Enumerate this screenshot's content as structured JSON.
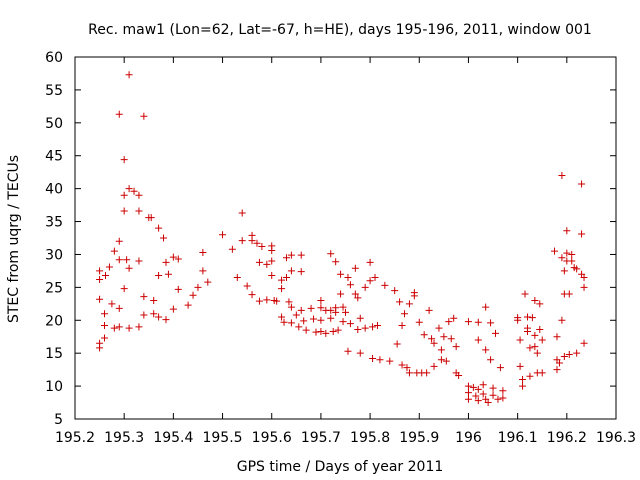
{
  "chart_data": {
    "type": "scatter",
    "title": "Rec. maw1 (Lon=62, Lat=-67, h=HE), days 195-196, 2011, window 001",
    "xlabel": "GPS time / Days of year 2011",
    "ylabel": "STEC from uqrg / TECUs",
    "xlim": [
      195.2,
      196.3
    ],
    "ylim": [
      5,
      60
    ],
    "xticks": [
      195.2,
      195.3,
      195.4,
      195.5,
      195.6,
      195.7,
      195.8,
      195.9,
      196.0,
      196.1,
      196.2,
      196.3
    ],
    "xtick_labels": [
      "195.2",
      "195.3",
      "195.4",
      "195.5",
      "195.6",
      "195.7",
      "195.8",
      "195.9",
      "196",
      "196.1",
      "196.2",
      "196.3"
    ],
    "yticks": [
      5,
      10,
      15,
      20,
      25,
      30,
      35,
      40,
      45,
      50,
      55,
      60
    ],
    "ytick_labels": [
      "5",
      "10",
      "15",
      "20",
      "25",
      "30",
      "35",
      "40",
      "45",
      "50",
      "55",
      "60"
    ],
    "marker": "plus",
    "marker_color": "#cc0000",
    "grid": false,
    "series": [
      {
        "name": "STEC",
        "points": [
          [
            195.25,
            27.5
          ],
          [
            195.25,
            26.2
          ],
          [
            195.25,
            23.2
          ],
          [
            195.25,
            16.5
          ],
          [
            195.25,
            15.8
          ],
          [
            195.26,
            21.0
          ],
          [
            195.26,
            19.2
          ],
          [
            195.26,
            17.3
          ],
          [
            195.262,
            26.8
          ],
          [
            195.27,
            28.1
          ],
          [
            195.275,
            22.5
          ],
          [
            195.28,
            18.8
          ],
          [
            195.28,
            30.5
          ],
          [
            195.29,
            51.3
          ],
          [
            195.29,
            32.0
          ],
          [
            195.29,
            29.2
          ],
          [
            195.29,
            21.8
          ],
          [
            195.29,
            19.0
          ],
          [
            195.3,
            44.4
          ],
          [
            195.3,
            39.0
          ],
          [
            195.3,
            36.6
          ],
          [
            195.3,
            24.8
          ],
          [
            195.305,
            29.2
          ],
          [
            195.31,
            57.3
          ],
          [
            195.31,
            40.0
          ],
          [
            195.31,
            27.9
          ],
          [
            195.31,
            18.8
          ],
          [
            195.32,
            39.6
          ],
          [
            195.33,
            39.0
          ],
          [
            195.33,
            36.6
          ],
          [
            195.33,
            29.0
          ],
          [
            195.33,
            19.0
          ],
          [
            195.34,
            51.0
          ],
          [
            195.34,
            23.6
          ],
          [
            195.34,
            20.8
          ],
          [
            195.35,
            35.6
          ],
          [
            195.355,
            35.6
          ],
          [
            195.36,
            23.0
          ],
          [
            195.36,
            21.0
          ],
          [
            195.37,
            34.0
          ],
          [
            195.37,
            26.8
          ],
          [
            195.37,
            20.5
          ],
          [
            195.38,
            32.5
          ],
          [
            195.385,
            28.8
          ],
          [
            195.385,
            20.1
          ],
          [
            195.39,
            27.0
          ],
          [
            195.4,
            29.6
          ],
          [
            195.4,
            21.7
          ],
          [
            195.41,
            29.3
          ],
          [
            195.41,
            24.7
          ],
          [
            195.43,
            22.3
          ],
          [
            195.44,
            23.8
          ],
          [
            195.45,
            25.0
          ],
          [
            195.46,
            30.3
          ],
          [
            195.46,
            27.5
          ],
          [
            195.47,
            25.8
          ],
          [
            195.5,
            33.0
          ],
          [
            195.52,
            30.8
          ],
          [
            195.53,
            26.5
          ],
          [
            195.54,
            36.3
          ],
          [
            195.54,
            32.1
          ],
          [
            195.55,
            25.2
          ],
          [
            195.56,
            32.9
          ],
          [
            195.56,
            32.1
          ],
          [
            195.56,
            23.9
          ],
          [
            195.57,
            31.7
          ],
          [
            195.575,
            28.8
          ],
          [
            195.575,
            22.9
          ],
          [
            195.58,
            31.2
          ],
          [
            195.59,
            28.5
          ],
          [
            195.59,
            23.1
          ],
          [
            195.6,
            31.3
          ],
          [
            195.6,
            30.6
          ],
          [
            195.6,
            29.0
          ],
          [
            195.6,
            26.8
          ],
          [
            195.605,
            23.0
          ],
          [
            195.61,
            22.9
          ],
          [
            195.62,
            26.1
          ],
          [
            195.62,
            24.8
          ],
          [
            195.62,
            20.5
          ],
          [
            195.625,
            19.7
          ],
          [
            195.63,
            29.5
          ],
          [
            195.63,
            26.5
          ],
          [
            195.635,
            22.8
          ],
          [
            195.64,
            29.9
          ],
          [
            195.64,
            27.5
          ],
          [
            195.64,
            22.0
          ],
          [
            195.64,
            19.6
          ],
          [
            195.65,
            20.8
          ],
          [
            195.655,
            19.0
          ],
          [
            195.66,
            29.9
          ],
          [
            195.66,
            27.4
          ],
          [
            195.66,
            21.5
          ],
          [
            195.665,
            19.9
          ],
          [
            195.67,
            18.5
          ],
          [
            195.68,
            21.8
          ],
          [
            195.685,
            20.2
          ],
          [
            195.69,
            18.2
          ],
          [
            195.7,
            23.0
          ],
          [
            195.7,
            21.9
          ],
          [
            195.7,
            20.0
          ],
          [
            195.7,
            18.3
          ],
          [
            195.71,
            21.5
          ],
          [
            195.71,
            18.0
          ],
          [
            195.72,
            30.1
          ],
          [
            195.72,
            21.5
          ],
          [
            195.72,
            20.3
          ],
          [
            195.725,
            18.3
          ],
          [
            195.73,
            28.9
          ],
          [
            195.73,
            21.9
          ],
          [
            195.73,
            21.2
          ],
          [
            195.735,
            18.5
          ],
          [
            195.74,
            27.0
          ],
          [
            195.74,
            24.0
          ],
          [
            195.745,
            22.0
          ],
          [
            195.745,
            19.8
          ],
          [
            195.75,
            21.2
          ],
          [
            195.755,
            26.5
          ],
          [
            195.755,
            15.3
          ],
          [
            195.76,
            25.4
          ],
          [
            195.76,
            19.5
          ],
          [
            195.77,
            27.9
          ],
          [
            195.77,
            24.0
          ],
          [
            195.775,
            23.4
          ],
          [
            195.775,
            18.6
          ],
          [
            195.78,
            20.3
          ],
          [
            195.78,
            15.0
          ],
          [
            195.79,
            25.0
          ],
          [
            195.79,
            18.8
          ],
          [
            195.8,
            28.8
          ],
          [
            195.8,
            26.0
          ],
          [
            195.805,
            19.0
          ],
          [
            195.805,
            14.2
          ],
          [
            195.81,
            26.5
          ],
          [
            195.815,
            19.2
          ],
          [
            195.82,
            14.0
          ],
          [
            195.83,
            25.3
          ],
          [
            195.84,
            13.8
          ],
          [
            195.85,
            24.5
          ],
          [
            195.855,
            16.4
          ],
          [
            195.86,
            22.8
          ],
          [
            195.865,
            19.2
          ],
          [
            195.865,
            13.2
          ],
          [
            195.87,
            21.0
          ],
          [
            195.875,
            12.8
          ],
          [
            195.88,
            22.5
          ],
          [
            195.88,
            12.0
          ],
          [
            195.89,
            24.2
          ],
          [
            195.89,
            23.7
          ],
          [
            195.895,
            12.0
          ],
          [
            195.9,
            19.7
          ],
          [
            195.905,
            12.0
          ],
          [
            195.91,
            17.8
          ],
          [
            195.915,
            12.0
          ],
          [
            195.92,
            21.5
          ],
          [
            195.925,
            17.2
          ],
          [
            195.93,
            16.5
          ],
          [
            195.93,
            13.0
          ],
          [
            195.94,
            18.8
          ],
          [
            195.945,
            15.5
          ],
          [
            195.945,
            14.0
          ],
          [
            195.95,
            17.5
          ],
          [
            195.955,
            13.8
          ],
          [
            195.96,
            19.8
          ],
          [
            195.965,
            17.2
          ],
          [
            195.97,
            20.3
          ],
          [
            195.975,
            16.0
          ],
          [
            195.975,
            12.0
          ],
          [
            195.98,
            11.6
          ],
          [
            196.0,
            19.8
          ],
          [
            196.0,
            10.0
          ],
          [
            196.0,
            9.0
          ],
          [
            196.0,
            8.0
          ],
          [
            196.01,
            9.8
          ],
          [
            196.015,
            8.5
          ],
          [
            196.02,
            19.7
          ],
          [
            196.02,
            17.0
          ],
          [
            196.02,
            9.5
          ],
          [
            196.02,
            7.8
          ],
          [
            196.03,
            10.2
          ],
          [
            196.03,
            8.8
          ],
          [
            196.035,
            22.0
          ],
          [
            196.035,
            15.5
          ],
          [
            196.035,
            8.0
          ],
          [
            196.04,
            7.5
          ],
          [
            196.045,
            19.6
          ],
          [
            196.045,
            14.0
          ],
          [
            196.05,
            9.7
          ],
          [
            196.05,
            8.6
          ],
          [
            196.055,
            18.0
          ],
          [
            196.06,
            8.0
          ],
          [
            196.065,
            12.8
          ],
          [
            196.07,
            9.3
          ],
          [
            196.07,
            8.2
          ],
          [
            196.1,
            20.4
          ],
          [
            196.1,
            20.0
          ],
          [
            196.105,
            17.0
          ],
          [
            196.105,
            13.0
          ],
          [
            196.11,
            11.0
          ],
          [
            196.11,
            10.0
          ],
          [
            196.115,
            24.0
          ],
          [
            196.12,
            20.5
          ],
          [
            196.12,
            18.8
          ],
          [
            196.12,
            18.3
          ],
          [
            196.125,
            15.8
          ],
          [
            196.125,
            11.5
          ],
          [
            196.13,
            20.4
          ],
          [
            196.135,
            23.0
          ],
          [
            196.135,
            17.7
          ],
          [
            196.135,
            16.0
          ],
          [
            196.14,
            15.0
          ],
          [
            196.14,
            12.0
          ],
          [
            196.145,
            22.5
          ],
          [
            196.145,
            18.6
          ],
          [
            196.15,
            17.0
          ],
          [
            196.15,
            12.0
          ],
          [
            196.175,
            30.5
          ],
          [
            196.18,
            17.5
          ],
          [
            196.18,
            14.0
          ],
          [
            196.18,
            12.5
          ],
          [
            196.185,
            13.5
          ],
          [
            196.19,
            42.0
          ],
          [
            196.19,
            29.5
          ],
          [
            196.19,
            20.0
          ],
          [
            196.195,
            27.5
          ],
          [
            196.195,
            24.0
          ],
          [
            196.195,
            14.5
          ],
          [
            196.2,
            33.6
          ],
          [
            196.2,
            30.2
          ],
          [
            196.2,
            29.0
          ],
          [
            196.205,
            24.0
          ],
          [
            196.205,
            14.8
          ],
          [
            196.21,
            30.0
          ],
          [
            196.21,
            29.0
          ],
          [
            196.215,
            28.0
          ],
          [
            196.22,
            27.8
          ],
          [
            196.22,
            15.0
          ],
          [
            196.23,
            40.7
          ],
          [
            196.23,
            33.1
          ],
          [
            196.23,
            27.0
          ],
          [
            196.235,
            26.5
          ],
          [
            196.235,
            25.0
          ],
          [
            196.235,
            16.5
          ]
        ]
      }
    ]
  }
}
